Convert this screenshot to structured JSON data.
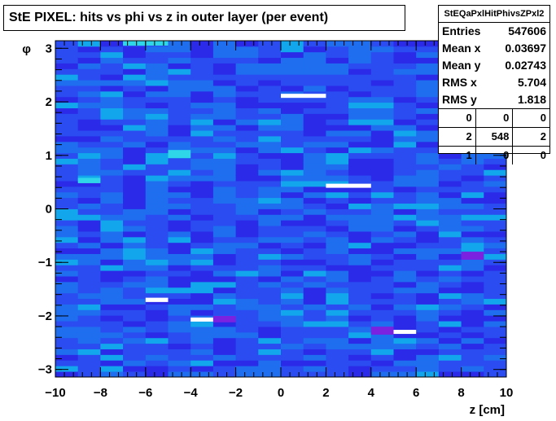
{
  "title": "StE PIXEL: hits vs phi vs z in outer layer (per event)",
  "stats": {
    "name": "StEQaPxlHitPhivsZPxl2",
    "rows": [
      {
        "label": "Entries",
        "value": "547606"
      },
      {
        "label": "Mean x",
        "value": "0.03697"
      },
      {
        "label": "Mean y",
        "value": "0.02743"
      },
      {
        "label": "RMS x",
        "value": "5.704"
      },
      {
        "label": "RMS y",
        "value": "1.818"
      }
    ],
    "grid": [
      [
        "0",
        "0",
        "0"
      ],
      [
        "2",
        "548",
        "2"
      ],
      [
        "1",
        "0",
        "0"
      ]
    ]
  },
  "colors": {
    "base": "#2a4cf0",
    "low": "#2a2ae8",
    "mid": "#1f6ef0",
    "high": "#12a6ec",
    "peak": "#2ed6e8",
    "hot": "#7a22e0",
    "max": "#ffffff"
  },
  "chart_data": {
    "type": "heatmap",
    "title": "StE PIXEL: hits vs phi vs z in outer layer (per event)",
    "xlabel": "z [cm]",
    "ylabel": "φ",
    "xlim": [
      -10,
      10
    ],
    "ylim": [
      -3.1416,
      3.1416
    ],
    "x_ticks": [
      -10,
      -8,
      -6,
      -4,
      -2,
      0,
      2,
      4,
      6,
      8,
      10
    ],
    "y_ticks": [
      -3,
      -2,
      -1,
      0,
      1,
      2,
      3
    ],
    "x_tick_labels": [
      "−10",
      "−8",
      "−6",
      "−4",
      "−2",
      "0",
      "2",
      "4",
      "6",
      "8",
      "10"
    ],
    "y_tick_labels": [
      "−3",
      "−2",
      "−1",
      "0",
      "1",
      "2",
      "3"
    ],
    "nbins_x": 20,
    "nbins_y": 60,
    "background_level": "uniform, mostly medium blue with lighter streaks",
    "hot_cells": [
      {
        "x": [
          0,
          2
        ],
        "y": [
          2.09,
          2.15
        ],
        "level": "max"
      },
      {
        "x": [
          2,
          4
        ],
        "y": [
          0.42,
          0.47
        ],
        "level": "max"
      },
      {
        "x": [
          -6,
          -5
        ],
        "y": [
          -1.74,
          -1.66
        ],
        "level": "max"
      },
      {
        "x": [
          -4,
          -3
        ],
        "y": [
          -2.1,
          -2.03
        ],
        "level": "max"
      },
      {
        "x": [
          5,
          6
        ],
        "y": [
          -2.33,
          -2.26
        ],
        "level": "max"
      },
      {
        "x": [
          -5,
          -4
        ],
        "y": [
          0.95,
          1.1
        ],
        "level": "peak"
      },
      {
        "x": [
          -9,
          -8
        ],
        "y": [
          0.48,
          0.58
        ],
        "level": "peak"
      },
      {
        "x": [
          -7,
          -5
        ],
        "y": [
          3.05,
          3.14
        ],
        "level": "peak"
      },
      {
        "x": [
          8,
          9
        ],
        "y": [
          -0.95,
          -0.8
        ],
        "level": "hot"
      },
      {
        "x": [
          4,
          5
        ],
        "y": [
          -2.35,
          -2.2
        ],
        "level": "hot"
      },
      {
        "x": [
          -3,
          -2
        ],
        "y": [
          -2.12,
          -2.0
        ],
        "level": "hot"
      },
      {
        "x": [
          8,
          9
        ],
        "y": [
          2.95,
          3.05
        ],
        "level": "hot"
      }
    ]
  }
}
